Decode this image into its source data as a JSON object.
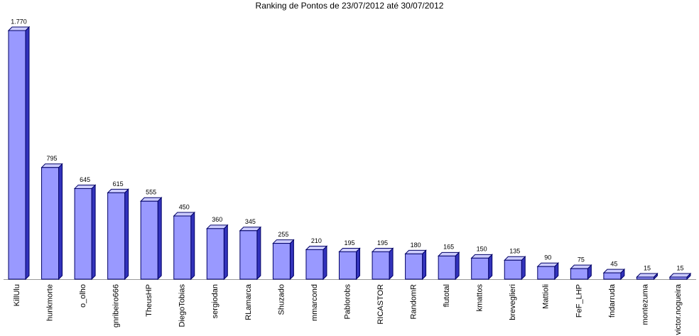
{
  "chart_data": {
    "type": "bar3d",
    "title": "Ranking de Pontos de 23/07/2012 até 30/07/2012",
    "categories": [
      "KillUlu",
      "hunkmorte",
      "o_olho",
      "gnribeiro666",
      "TheusHP",
      "DiegoTobias",
      "sergiodan",
      "RLamarca",
      "Shuzado",
      "mmarcond",
      "Pablorobs",
      "RICASTOR",
      "RandomR",
      "flutotal",
      "kmattos",
      "breveglieri",
      "Mattioli",
      "FeF_LHP",
      "fndarruda",
      "montezuma",
      "victor.nogueira"
    ],
    "values": [
      1770,
      795,
      645,
      615,
      555,
      450,
      360,
      345,
      255,
      210,
      195,
      195,
      180,
      165,
      150,
      135,
      90,
      75,
      45,
      15,
      15
    ],
    "value_labels": [
      "1.770",
      "795",
      "645",
      "615",
      "555",
      "450",
      "360",
      "345",
      "255",
      "210",
      "195",
      "195",
      "180",
      "165",
      "150",
      "135",
      "90",
      "75",
      "45",
      "15",
      "15"
    ],
    "color": "#9999ff"
  }
}
